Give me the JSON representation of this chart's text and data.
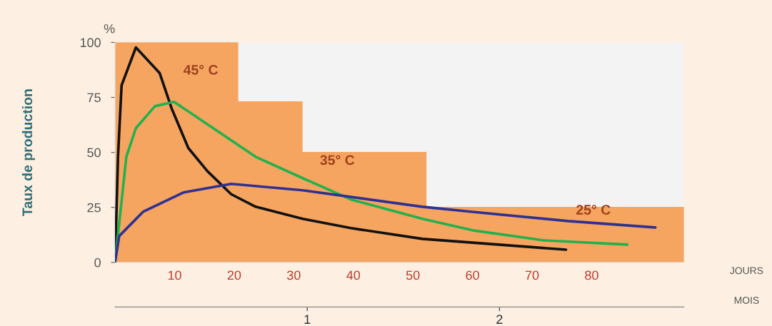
{
  "chart_data": {
    "type": "line",
    "ylabel": "Taux de production",
    "xlabel": "JOURS",
    "x2label": "MOIS",
    "annotations": [
      "%"
    ],
    "xlim": [
      0,
      95.5
    ],
    "xticks": [
      10,
      20,
      30,
      40,
      50,
      60,
      70,
      80
    ],
    "ylim": [
      0,
      100
    ],
    "yticks": [
      0,
      25,
      50,
      75,
      100
    ],
    "x2lim": [
      0,
      2.96
    ],
    "x2ticks": [
      1,
      2
    ],
    "grid": false,
    "legend": false,
    "marker": "none",
    "line_style": "solid",
    "series": [
      {
        "type": "area",
        "color": "#f6a560",
        "x": [
          0,
          20.6,
          20.6,
          31.4,
          31.4,
          52.2,
          52.2,
          95.5
        ],
        "values": [
          100,
          100,
          73,
          73,
          50,
          50,
          25,
          25
        ]
      },
      {
        "name": "45° C",
        "color": "#111111",
        "x": [
          0,
          0.5,
          1.1,
          3.5,
          7.5,
          9.5,
          12.3,
          15.5,
          19.5,
          23.6,
          31.5,
          39.6,
          51.6,
          60,
          75.7
        ],
        "values": [
          0,
          48,
          80.5,
          97.7,
          86,
          70,
          52,
          41.5,
          31,
          25.3,
          19.8,
          15.6,
          10.7,
          9,
          5.8
        ]
      },
      {
        "name": "35° C",
        "color": "#22b14c",
        "x": [
          0,
          1.9,
          3.5,
          6.7,
          9.9,
          17.6,
          23.6,
          31.5,
          39.6,
          51.6,
          60,
          72,
          86
        ],
        "values": [
          0,
          48,
          61,
          71,
          73,
          59,
          48,
          38.3,
          28.6,
          19.8,
          14.6,
          10,
          8.1
        ]
      },
      {
        "name": "25° C",
        "color": "#2e3192",
        "x": [
          0,
          0.7,
          4.7,
          11.5,
          19.5,
          31.5,
          51.6,
          60,
          76,
          90.7
        ],
        "values": [
          0,
          12,
          23,
          31.8,
          35.7,
          32.8,
          25.3,
          23,
          18.8,
          15.9
        ]
      }
    ]
  }
}
